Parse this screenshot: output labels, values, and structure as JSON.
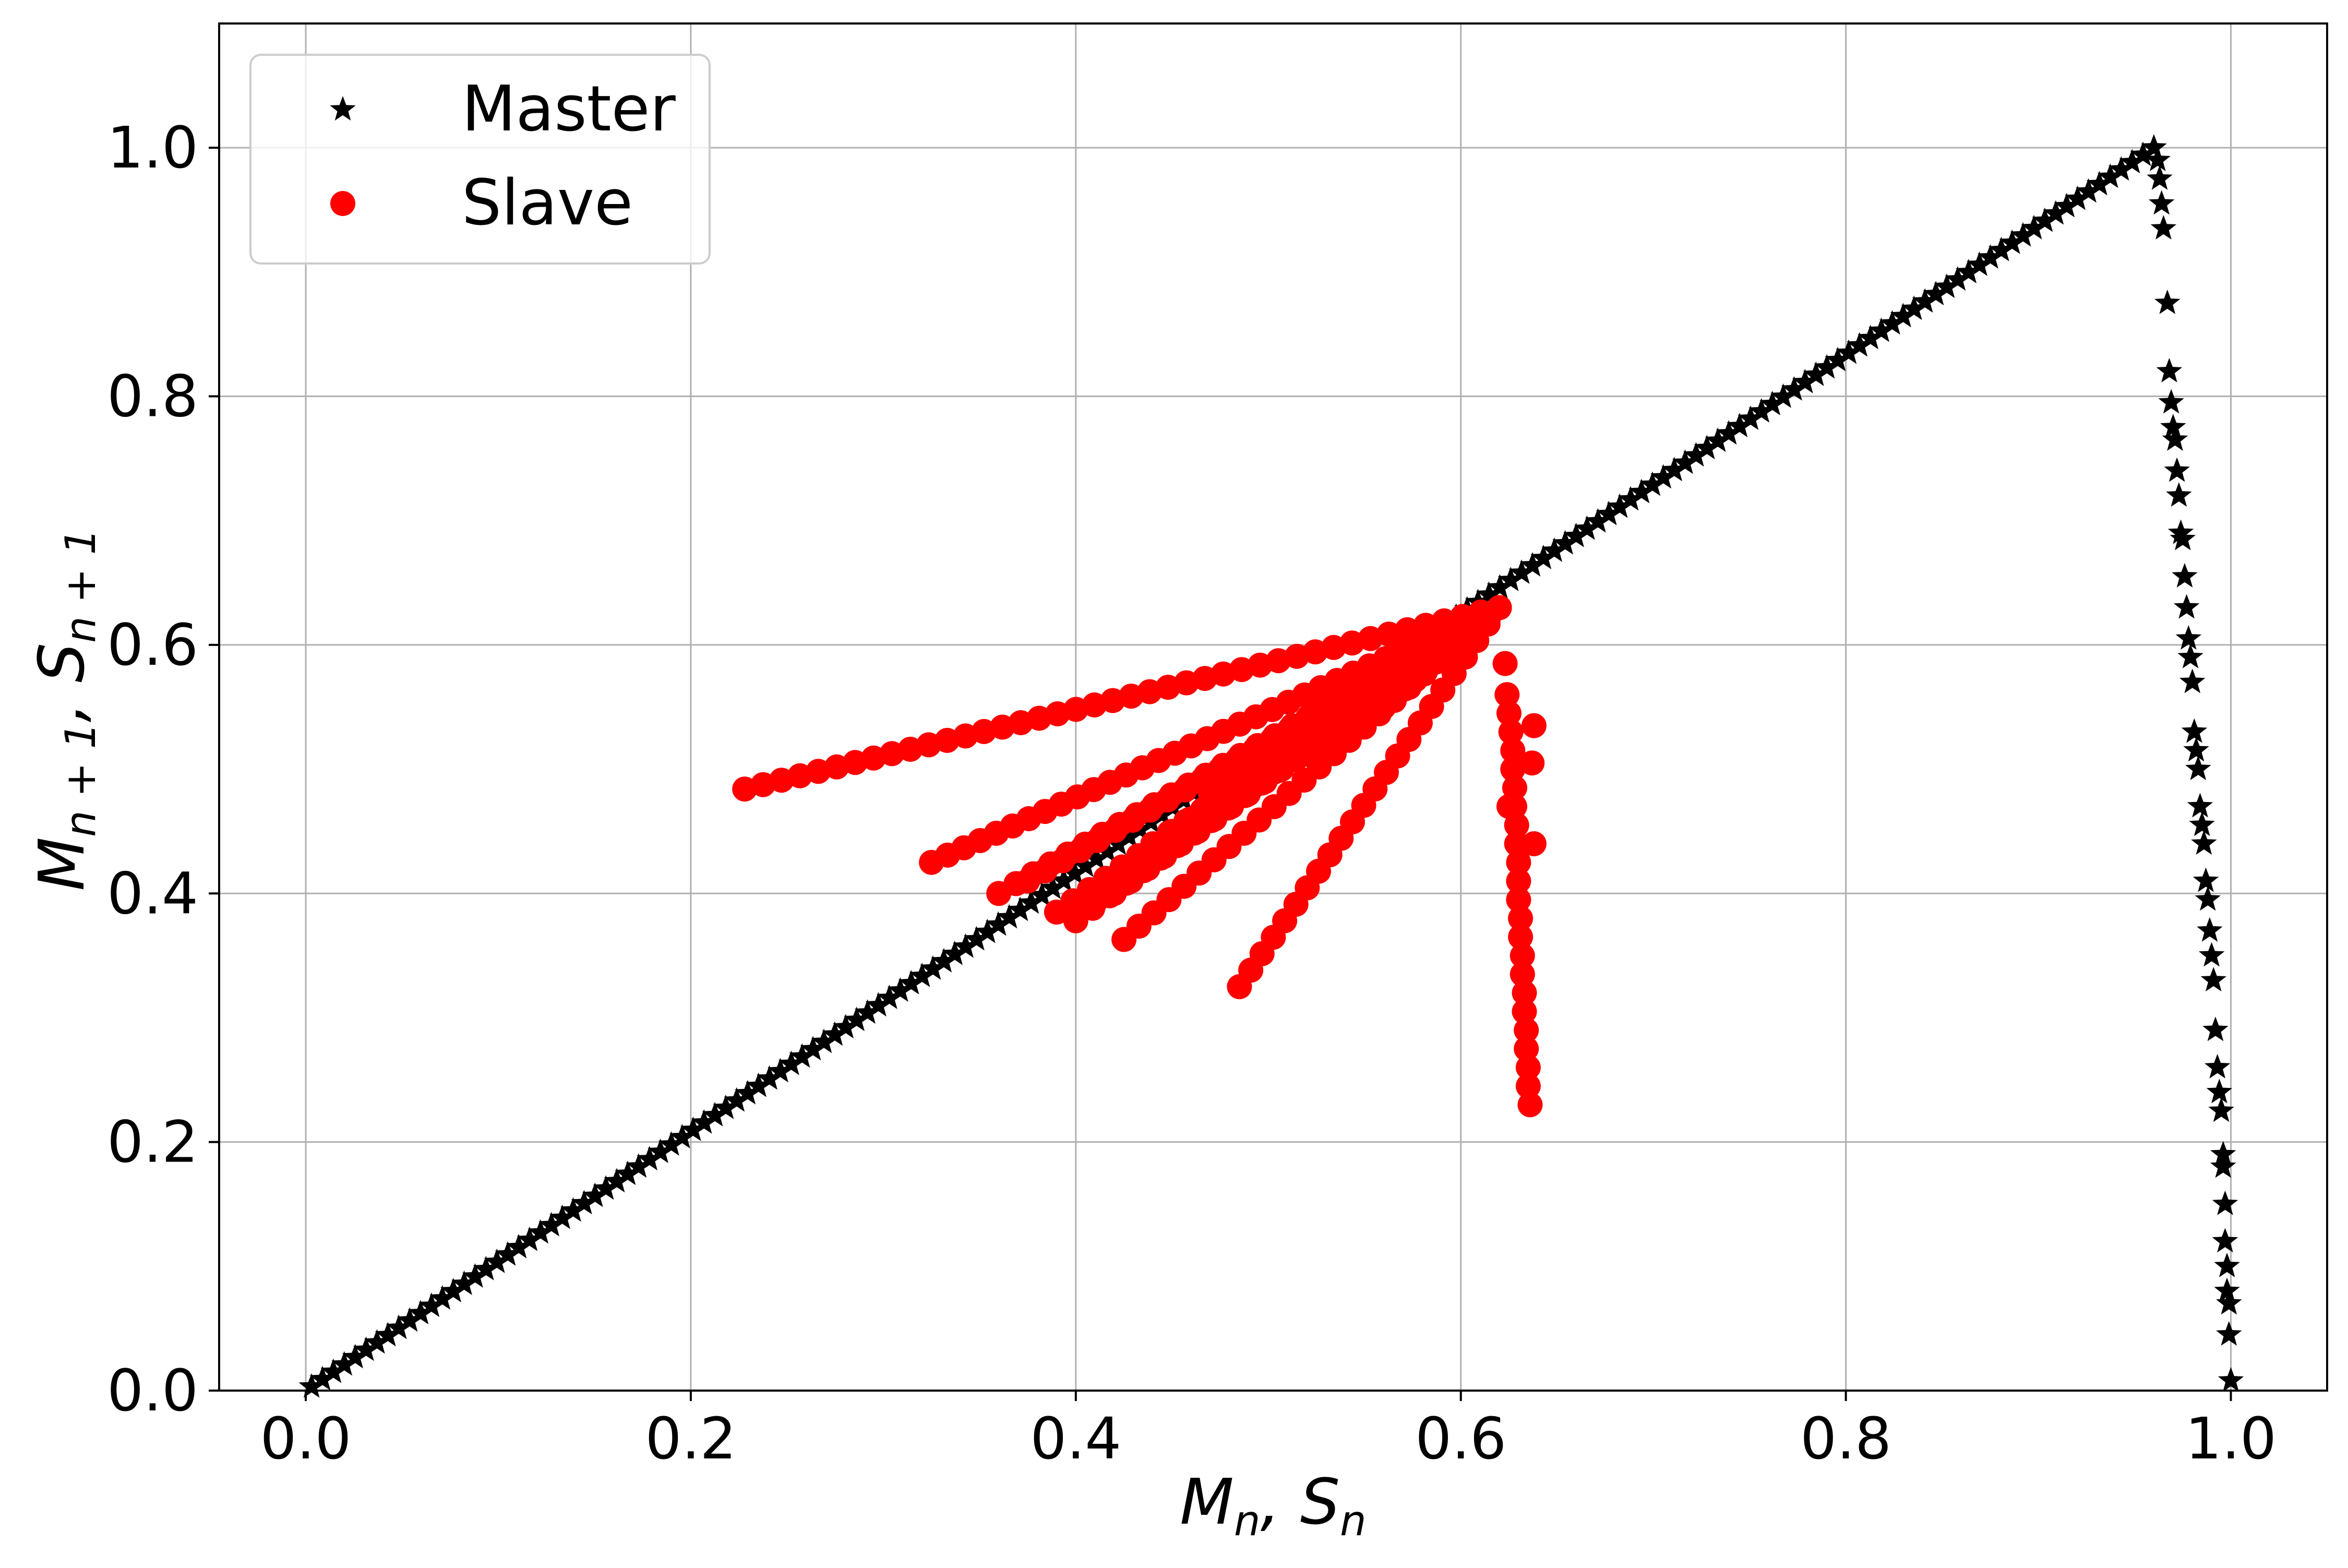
{
  "chart_data": {
    "type": "scatter",
    "title": "",
    "xlabel": "M_n, S_n",
    "ylabel": "M_{n+1}, S_{n+1}",
    "xlim": [
      -0.045,
      1.05
    ],
    "ylim": [
      0.0,
      1.1
    ],
    "grid": true,
    "legend": "upper-left",
    "xticks": [
      "0.0",
      "0.2",
      "0.4",
      "0.6",
      "0.8",
      "1.0"
    ],
    "yticks": [
      "0.0",
      "0.2",
      "0.4",
      "0.6",
      "0.8",
      "1.0"
    ],
    "series": [
      {
        "name": "Master",
        "marker": "star",
        "color": "#000000",
        "ramp_up": {
          "x_start": 0.003,
          "x_end": 0.96,
          "y_per_x": 1.0417,
          "count": 170
        },
        "points": [
          [
            0.96,
            1.0
          ],
          [
            0.962,
            0.99
          ],
          [
            0.963,
            0.975
          ],
          [
            0.964,
            0.955
          ],
          [
            0.965,
            0.935
          ],
          [
            0.967,
            0.875
          ],
          [
            0.968,
            0.82
          ],
          [
            0.969,
            0.795
          ],
          [
            0.97,
            0.775
          ],
          [
            0.971,
            0.765
          ],
          [
            0.972,
            0.74
          ],
          [
            0.973,
            0.72
          ],
          [
            0.974,
            0.69
          ],
          [
            0.975,
            0.685
          ],
          [
            0.976,
            0.655
          ],
          [
            0.977,
            0.63
          ],
          [
            0.978,
            0.605
          ],
          [
            0.979,
            0.59
          ],
          [
            0.98,
            0.57
          ],
          [
            0.981,
            0.53
          ],
          [
            0.982,
            0.515
          ],
          [
            0.983,
            0.5
          ],
          [
            0.984,
            0.47
          ],
          [
            0.985,
            0.455
          ],
          [
            0.986,
            0.44
          ],
          [
            0.987,
            0.41
          ],
          [
            0.988,
            0.395
          ],
          [
            0.989,
            0.37
          ],
          [
            0.99,
            0.35
          ],
          [
            0.991,
            0.33
          ],
          [
            0.992,
            0.29
          ],
          [
            0.993,
            0.26
          ],
          [
            0.994,
            0.24
          ],
          [
            0.995,
            0.225
          ],
          [
            0.996,
            0.19
          ],
          [
            0.996,
            0.18
          ],
          [
            0.997,
            0.15
          ],
          [
            0.997,
            0.12
          ],
          [
            0.998,
            0.1
          ],
          [
            0.998,
            0.08
          ],
          [
            0.999,
            0.07
          ],
          [
            0.999,
            0.045
          ],
          [
            1.0,
            0.008
          ]
        ]
      },
      {
        "name": "Slave",
        "marker": "circle",
        "color": "#ff0000",
        "center": [
          0.62,
          0.63
        ],
        "branches": [
          {
            "start": [
              0.228,
              0.484
            ],
            "count": 42
          },
          {
            "start": [
              0.325,
              0.425
            ],
            "count": 36
          },
          {
            "start": [
              0.36,
              0.4
            ],
            "count": 30
          },
          {
            "start": [
              0.375,
              0.41
            ],
            "count": 28
          },
          {
            "start": [
              0.39,
              0.385
            ],
            "count": 28
          },
          {
            "start": [
              0.4,
              0.378
            ],
            "count": 26
          },
          {
            "start": [
              0.41,
              0.393
            ],
            "count": 26
          },
          {
            "start": [
              0.42,
              0.4
            ],
            "count": 24
          },
          {
            "start": [
              0.425,
              0.363
            ],
            "count": 26
          },
          {
            "start": [
              0.43,
              0.42
            ],
            "count": 22
          },
          {
            "start": [
              0.44,
              0.44
            ],
            "count": 22
          },
          {
            "start": [
              0.45,
              0.45
            ],
            "count": 20
          },
          {
            "start": [
              0.46,
              0.46
            ],
            "count": 20
          },
          {
            "start": [
              0.47,
              0.48
            ],
            "count": 18
          },
          {
            "start": [
              0.485,
              0.325
            ],
            "count": 24
          },
          {
            "start": [
              0.5,
              0.5
            ],
            "count": 18
          },
          {
            "start": [
              0.53,
              0.52
            ],
            "count": 14
          },
          {
            "start": [
              0.56,
              0.55
            ],
            "count": 12
          }
        ],
        "tail": [
          [
            0.623,
            0.585
          ],
          [
            0.624,
            0.56
          ],
          [
            0.625,
            0.545
          ],
          [
            0.626,
            0.53
          ],
          [
            0.627,
            0.515
          ],
          [
            0.627,
            0.5
          ],
          [
            0.628,
            0.485
          ],
          [
            0.628,
            0.47
          ],
          [
            0.629,
            0.455
          ],
          [
            0.629,
            0.44
          ],
          [
            0.63,
            0.425
          ],
          [
            0.63,
            0.41
          ],
          [
            0.63,
            0.395
          ],
          [
            0.631,
            0.38
          ],
          [
            0.631,
            0.365
          ],
          [
            0.632,
            0.35
          ],
          [
            0.632,
            0.335
          ],
          [
            0.633,
            0.32
          ],
          [
            0.633,
            0.305
          ],
          [
            0.634,
            0.29
          ],
          [
            0.634,
            0.275
          ],
          [
            0.635,
            0.26
          ],
          [
            0.635,
            0.245
          ],
          [
            0.636,
            0.23
          ],
          [
            0.638,
            0.535
          ],
          [
            0.637,
            0.505
          ],
          [
            0.638,
            0.44
          ],
          [
            0.625,
            0.47
          ]
        ]
      }
    ]
  }
}
